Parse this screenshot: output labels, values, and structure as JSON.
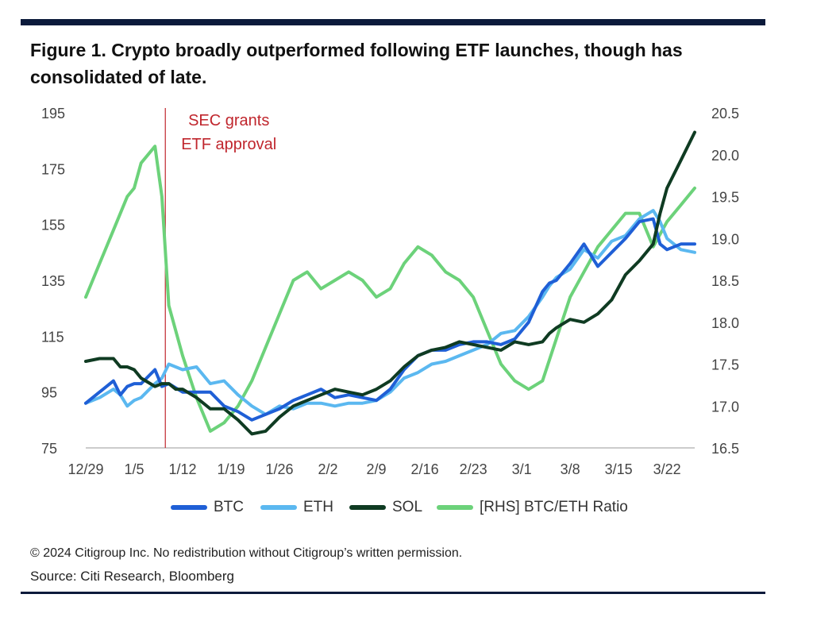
{
  "title": "Figure 1. Crypto broadly outperformed following ETF launches, though has consolidated of late.",
  "annotation": {
    "line1": "SEC grants",
    "line2": "ETF approval",
    "color": "#c0262d"
  },
  "copyright": "© 2024 Citigroup Inc. No redistribution without Citigroup’s written permission.",
  "source": "Source: Citi Research, Bloomberg",
  "chart_data": {
    "type": "line",
    "left_axis": {
      "ylim": [
        75,
        195
      ],
      "ticks": [
        "195",
        "175",
        "155",
        "135",
        "115",
        "95",
        "75"
      ]
    },
    "right_axis": {
      "ylim": [
        16.5,
        20.5
      ],
      "ticks": [
        "20.5",
        "20.0",
        "19.5",
        "19.0",
        "18.5",
        "18.0",
        "17.5",
        "17.0",
        "16.5"
      ]
    },
    "x_labels": [
      "12/29",
      "1/5",
      "1/12",
      "1/19",
      "1/26",
      "2/2",
      "2/9",
      "2/16",
      "2/23",
      "3/1",
      "3/8",
      "3/15",
      "3/22"
    ],
    "x_range": [
      0,
      88
    ],
    "event_x": 11.5,
    "series": [
      {
        "name": "BTC",
        "axis": "left",
        "color": "#1f5fd6",
        "x": [
          0,
          4,
          5,
          6,
          7,
          8,
          10,
          11,
          12,
          14,
          16,
          18,
          20,
          22,
          24,
          26,
          28,
          30,
          32,
          34,
          36,
          38,
          40,
          42,
          44,
          46,
          48,
          50,
          52,
          54,
          56,
          58,
          60,
          62,
          64,
          66,
          67,
          68,
          70,
          72,
          74,
          76,
          78,
          80,
          82,
          83,
          84,
          86,
          88
        ],
        "y": [
          91,
          99,
          94,
          97,
          98,
          98,
          103,
          97,
          98,
          95,
          95,
          95,
          90,
          88,
          85,
          87,
          89,
          92,
          94,
          96,
          93,
          94,
          93,
          92,
          96,
          103,
          108,
          110,
          110,
          112,
          113,
          113,
          112,
          114,
          120,
          131,
          134,
          135,
          141,
          148,
          140,
          145,
          150,
          156,
          157,
          148,
          146,
          148,
          148
        ]
      },
      {
        "name": "ETH",
        "axis": "left",
        "color": "#5bb8f0",
        "x": [
          0,
          2,
          4,
          5,
          6,
          7,
          8,
          10,
          11,
          12,
          14,
          16,
          18,
          20,
          22,
          24,
          26,
          28,
          30,
          32,
          34,
          36,
          38,
          40,
          42,
          44,
          46,
          48,
          50,
          52,
          54,
          56,
          58,
          60,
          62,
          64,
          66,
          67,
          68,
          70,
          72,
          74,
          76,
          78,
          80,
          82,
          83,
          84,
          86,
          88
        ],
        "y": [
          91,
          93,
          96,
          94,
          90,
          92,
          93,
          98,
          100,
          105,
          103,
          104,
          98,
          99,
          94,
          90,
          87,
          90,
          89,
          91,
          91,
          90,
          91,
          91,
          92,
          95,
          100,
          102,
          105,
          106,
          108,
          110,
          112,
          116,
          117,
          122,
          129,
          133,
          136,
          139,
          146,
          143,
          149,
          151,
          157,
          160,
          156,
          150,
          146,
          145
        ]
      },
      {
        "name": "SOL",
        "axis": "left",
        "color": "#0f3b22",
        "x": [
          0,
          2,
          4,
          5,
          6,
          7,
          8,
          10,
          11,
          12,
          13,
          14,
          16,
          18,
          20,
          22,
          24,
          26,
          28,
          30,
          32,
          34,
          36,
          38,
          40,
          42,
          44,
          46,
          48,
          50,
          52,
          54,
          56,
          58,
          60,
          62,
          64,
          66,
          67,
          68,
          70,
          72,
          74,
          76,
          78,
          80,
          82,
          83,
          84,
          86,
          88
        ],
        "y": [
          106,
          107,
          107,
          104,
          104,
          103,
          100,
          97,
          98,
          98,
          96,
          96,
          93,
          89,
          89,
          85,
          80,
          81,
          86,
          90,
          92,
          94,
          96,
          95,
          94,
          96,
          99,
          104,
          108,
          110,
          111,
          113,
          112,
          111,
          110,
          113,
          112,
          113,
          116,
          118,
          121,
          120,
          123,
          128,
          137,
          142,
          148,
          159,
          168,
          178,
          188
        ]
      },
      {
        "name": "[RHS] BTC/ETH Ratio",
        "axis": "right",
        "color": "#6cd27a",
        "x": [
          0,
          2,
          4,
          6,
          7,
          8,
          9,
          10,
          11,
          12,
          14,
          16,
          18,
          20,
          22,
          24,
          26,
          28,
          30,
          32,
          34,
          36,
          38,
          40,
          42,
          44,
          46,
          48,
          50,
          52,
          54,
          56,
          58,
          60,
          62,
          64,
          66,
          68,
          70,
          72,
          74,
          76,
          78,
          80,
          82,
          84,
          86,
          88
        ],
        "y": [
          18.3,
          18.7,
          19.1,
          19.5,
          19.6,
          19.9,
          20.0,
          20.1,
          19.5,
          18.2,
          17.6,
          17.1,
          16.7,
          16.8,
          17.0,
          17.3,
          17.7,
          18.1,
          18.5,
          18.6,
          18.4,
          18.5,
          18.6,
          18.5,
          18.3,
          18.4,
          18.7,
          18.9,
          18.8,
          18.6,
          18.5,
          18.3,
          17.9,
          17.5,
          17.3,
          17.2,
          17.3,
          17.8,
          18.3,
          18.6,
          18.9,
          19.1,
          19.3,
          19.3,
          18.9,
          19.2,
          19.4,
          19.6
        ]
      }
    ]
  }
}
